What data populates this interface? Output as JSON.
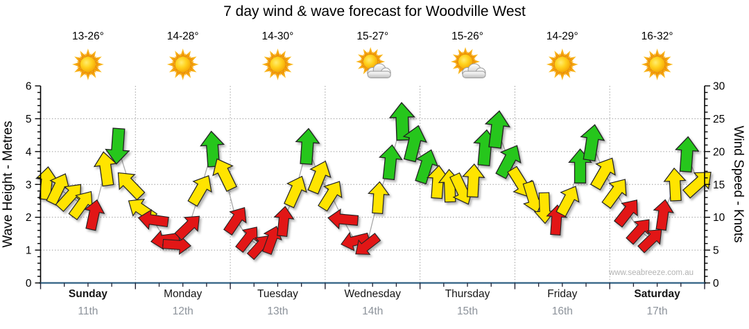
{
  "title": "7 day wind & wave forecast for Woodville West",
  "watermark": "www.seabreeze.com.au",
  "days": [
    {
      "name": "Sunday",
      "date": "11th",
      "temp": "13-26°",
      "icon": "sunny",
      "weekend": true
    },
    {
      "name": "Monday",
      "date": "12th",
      "temp": "14-28°",
      "icon": "sunny",
      "weekend": false
    },
    {
      "name": "Tuesday",
      "date": "13th",
      "temp": "14-30°",
      "icon": "sunny",
      "weekend": false
    },
    {
      "name": "Wednesday",
      "date": "14th",
      "temp": "15-27°",
      "icon": "partly-cloudy",
      "weekend": false
    },
    {
      "name": "Thursday",
      "date": "15th",
      "temp": "15-26°",
      "icon": "partly-cloudy",
      "weekend": false
    },
    {
      "name": "Friday",
      "date": "16th",
      "temp": "14-29°",
      "icon": "sunny",
      "weekend": false
    },
    {
      "name": "Saturday",
      "date": "17th",
      "temp": "16-32°",
      "icon": "sunny",
      "weekend": true
    }
  ],
  "chart_data": {
    "type": "scatter",
    "title": "7 day wind & wave forecast for Woodville West",
    "left_axis": {
      "label": "Wave Height - Metres",
      "min": 0,
      "max": 6,
      "tick_step": 1
    },
    "right_axis": {
      "label": "Wind Speed - Knots",
      "min": 0,
      "max": 30,
      "tick_step": 5
    },
    "grid": true,
    "colors": {
      "R": "#e21212",
      "Y": "#ffe400",
      "G": "#28c61e",
      "line": "#a8a8a8",
      "grid": "#9e9e9e",
      "baseline": "#2e5f82",
      "axis": "#000000"
    },
    "arrow_format": [
      "day_index",
      "slot_index_of_8",
      "wind_speed_knots",
      "direction_deg_cw_from_up",
      "color_key"
    ],
    "arrows": [
      [
        0,
        0,
        15.2,
        6,
        "Y"
      ],
      [
        0,
        1,
        14.4,
        26,
        "Y"
      ],
      [
        0,
        2,
        13.2,
        42,
        "Y"
      ],
      [
        0,
        3,
        12.0,
        36,
        "Y"
      ],
      [
        0,
        4,
        10.4,
        12,
        "R"
      ],
      [
        0,
        5,
        17.4,
        352,
        "Y"
      ],
      [
        0,
        6,
        20.8,
        184,
        "G"
      ],
      [
        0,
        7,
        15.0,
        316,
        "Y"
      ],
      [
        1,
        0,
        11.2,
        304,
        "Y"
      ],
      [
        1,
        1,
        9.6,
        278,
        "R"
      ],
      [
        1,
        2,
        6.6,
        262,
        "R"
      ],
      [
        1,
        3,
        5.8,
        94,
        "R"
      ],
      [
        1,
        4,
        8.6,
        46,
        "R"
      ],
      [
        1,
        5,
        14.2,
        30,
        "Y"
      ],
      [
        1,
        6,
        20.4,
        356,
        "G"
      ],
      [
        1,
        7,
        16.6,
        334,
        "Y"
      ],
      [
        2,
        0,
        9.6,
        34,
        "R"
      ],
      [
        2,
        1,
        6.8,
        38,
        "R"
      ],
      [
        2,
        2,
        5.6,
        42,
        "R"
      ],
      [
        2,
        3,
        6.6,
        20,
        "R"
      ],
      [
        2,
        4,
        9.4,
        6,
        "R"
      ],
      [
        2,
        5,
        14.0,
        24,
        "Y"
      ],
      [
        2,
        6,
        20.8,
        4,
        "G"
      ],
      [
        2,
        7,
        16.2,
        22,
        "Y"
      ],
      [
        3,
        0,
        13.4,
        32,
        "Y"
      ],
      [
        3,
        1,
        9.7,
        275,
        "R"
      ],
      [
        3,
        2,
        6.4,
        256,
        "R"
      ],
      [
        3,
        3,
        5.7,
        232,
        "R"
      ],
      [
        3,
        4,
        13.0,
        4,
        "Y"
      ],
      [
        3,
        5,
        18.4,
        6,
        "G"
      ],
      [
        3,
        6,
        24.6,
        358,
        "G"
      ],
      [
        3,
        7,
        21.3,
        14,
        "G"
      ],
      [
        4,
        0,
        17.8,
        18,
        "G"
      ],
      [
        4,
        1,
        15.4,
        4,
        "Y"
      ],
      [
        4,
        2,
        14.8,
        358,
        "Y"
      ],
      [
        4,
        3,
        14.2,
        155,
        "Y"
      ],
      [
        4,
        4,
        15.6,
        3,
        "Y"
      ],
      [
        4,
        5,
        20.6,
        5,
        "G"
      ],
      [
        4,
        6,
        23.4,
        7,
        "G"
      ],
      [
        4,
        7,
        18.6,
        28,
        "G"
      ],
      [
        5,
        0,
        15.2,
        148,
        "Y"
      ],
      [
        5,
        1,
        13.0,
        163,
        "Y"
      ],
      [
        5,
        2,
        11.4,
        178,
        "Y"
      ],
      [
        5,
        3,
        9.6,
        4,
        "R"
      ],
      [
        5,
        4,
        12.6,
        28,
        "Y"
      ],
      [
        5,
        5,
        17.8,
        0,
        "G"
      ],
      [
        5,
        6,
        21.4,
        9,
        "G"
      ],
      [
        5,
        7,
        16.8,
        30,
        "Y"
      ],
      [
        6,
        0,
        13.8,
        36,
        "Y"
      ],
      [
        6,
        1,
        10.8,
        38,
        "R"
      ],
      [
        6,
        2,
        8.0,
        42,
        "R"
      ],
      [
        6,
        3,
        6.6,
        46,
        "R"
      ],
      [
        6,
        4,
        10.4,
        8,
        "R"
      ],
      [
        6,
        5,
        15.0,
        357,
        "Y"
      ],
      [
        6,
        6,
        19.6,
        4,
        "G"
      ],
      [
        6,
        7,
        15.2,
        48,
        "Y"
      ]
    ]
  }
}
